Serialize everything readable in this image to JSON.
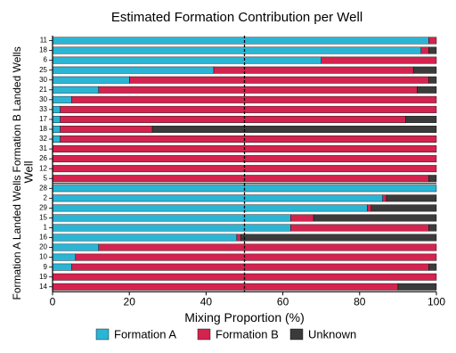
{
  "chart_data": [
    {
      "type": "stacked-barh",
      "title": "Estimated Formation Contribution per Well",
      "ylabel": "Well",
      "group_label": "Formation B Landed Wells",
      "categories": [
        "11",
        "18",
        "6",
        "25",
        "30",
        "21",
        "30",
        "33",
        "17",
        "18",
        "32",
        "31",
        "26",
        "12",
        "5"
      ],
      "series": [
        {
          "name": "Formation A",
          "color": "#2bb5d5",
          "values": [
            98,
            96,
            70,
            42,
            20,
            12,
            5,
            2,
            2,
            2,
            2,
            0,
            0,
            0,
            0
          ]
        },
        {
          "name": "Formation B",
          "color": "#d4234e",
          "values": [
            2,
            2,
            30,
            52,
            78,
            83,
            95,
            98,
            90,
            24,
            98,
            100,
            100,
            100,
            98
          ]
        },
        {
          "name": "Unknown",
          "color": "#3b3b3b",
          "values": [
            0,
            2,
            0,
            6,
            2,
            5,
            0,
            0,
            8,
            74,
            0,
            0,
            0,
            0,
            2
          ]
        }
      ],
      "xlim": [
        0,
        100
      ],
      "vline": 50
    },
    {
      "type": "stacked-barh",
      "group_label": "Formation A Landed Wells",
      "xlabel": "Mixing Proportion (%)",
      "categories": [
        "28",
        "2",
        "29",
        "15",
        "1",
        "16",
        "20",
        "10",
        "9",
        "19",
        "14"
      ],
      "series": [
        {
          "name": "Formation A",
          "color": "#2bb5d5",
          "values": [
            100,
            86,
            82,
            62,
            62,
            48,
            12,
            6,
            5,
            0,
            0
          ]
        },
        {
          "name": "Formation B",
          "color": "#d4234e",
          "values": [
            0,
            1,
            1,
            6,
            36,
            1,
            88,
            94,
            93,
            100,
            90
          ]
        },
        {
          "name": "Unknown",
          "color": "#3b3b3b",
          "values": [
            0,
            13,
            17,
            32,
            2,
            51,
            0,
            0,
            2,
            0,
            10
          ]
        }
      ],
      "xlim": [
        0,
        100
      ],
      "xticks": [
        0,
        20,
        40,
        60,
        80,
        100
      ],
      "vline": 50,
      "legend": "bottom"
    }
  ]
}
